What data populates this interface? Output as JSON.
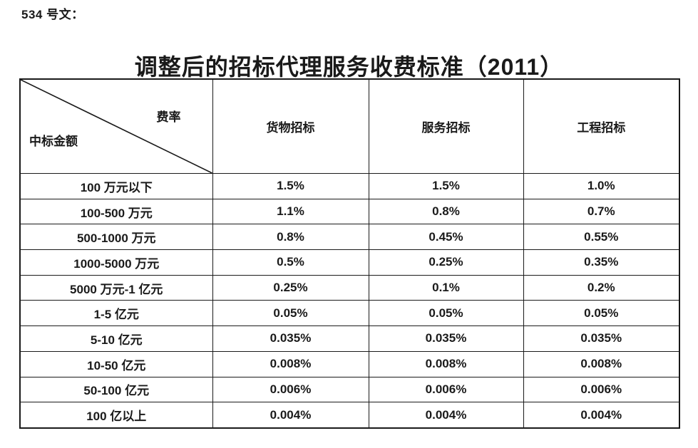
{
  "doc_label": "534 号文：",
  "title": "调整后的招标代理服务收费标准（2011）",
  "table": {
    "corner": {
      "rate_label": "费率",
      "amount_label": "中标金额"
    },
    "columns": [
      "货物招标",
      "服务招标",
      "工程招标"
    ],
    "rows": [
      {
        "amount": "100 万元以下",
        "values": [
          "1.5%",
          "1.5%",
          "1.0%"
        ]
      },
      {
        "amount": "100-500 万元",
        "values": [
          "1.1%",
          "0.8%",
          "0.7%"
        ]
      },
      {
        "amount": "500-1000 万元",
        "values": [
          "0.8%",
          "0.45%",
          "0.55%"
        ]
      },
      {
        "amount": "1000-5000 万元",
        "values": [
          "0.5%",
          "0.25%",
          "0.35%"
        ]
      },
      {
        "amount": "5000 万元-1 亿元",
        "values": [
          "0.25%",
          "0.1%",
          "0.2%"
        ]
      },
      {
        "amount": "1-5 亿元",
        "values": [
          "0.05%",
          "0.05%",
          "0.05%"
        ]
      },
      {
        "amount": "5-10 亿元",
        "values": [
          "0.035%",
          "0.035%",
          "0.035%"
        ]
      },
      {
        "amount": "10-50 亿元",
        "values": [
          "0.008%",
          "0.008%",
          "0.008%"
        ]
      },
      {
        "amount": "50-100 亿元",
        "values": [
          "0.006%",
          "0.006%",
          "0.006%"
        ]
      },
      {
        "amount": "100 亿以上",
        "values": [
          "0.004%",
          "0.004%",
          "0.004%"
        ]
      }
    ]
  },
  "colors": {
    "text": "#1a1a1a",
    "border": "#1a1a1a",
    "background": "#ffffff"
  }
}
